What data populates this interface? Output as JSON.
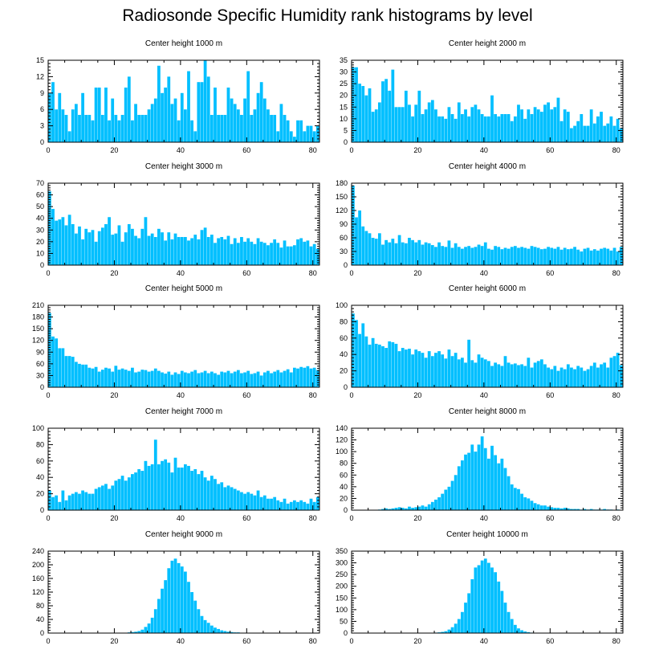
{
  "title": "Radiosonde Specific Humidity rank histograms by level",
  "colors": {
    "bar": "#00bfff",
    "axis": "#000000",
    "background": "#ffffff"
  },
  "chart_data": [
    {
      "type": "bar",
      "title": "Center height 1000 m",
      "xlim": [
        0,
        82
      ],
      "ylim": [
        0,
        15
      ],
      "x_ticks": [
        0,
        20,
        40,
        60,
        80
      ],
      "y_ticks": [
        0,
        3,
        6,
        9,
        12,
        15
      ],
      "values": [
        9,
        11,
        6,
        9,
        6,
        5,
        2,
        6,
        7,
        5,
        9,
        5,
        5,
        4,
        10,
        10,
        5,
        10,
        4,
        8,
        5,
        4,
        5,
        10,
        12,
        4,
        7,
        5,
        5,
        5,
        6,
        7,
        8,
        14,
        9,
        10,
        12,
        7,
        8,
        4,
        9,
        6,
        13,
        4,
        2,
        11,
        11,
        15,
        12,
        5,
        10,
        5,
        5,
        5,
        10,
        8,
        7,
        6,
        5,
        8,
        13,
        5,
        6,
        9,
        11,
        8,
        6,
        5,
        5,
        2,
        7,
        5,
        4,
        2,
        1,
        4,
        4,
        2,
        3,
        3,
        2,
        3
      ]
    },
    {
      "type": "bar",
      "title": "Center height 2000 m",
      "xlim": [
        0,
        82
      ],
      "ylim": [
        0,
        35
      ],
      "x_ticks": [
        0,
        20,
        40,
        60,
        80
      ],
      "y_ticks": [
        0,
        5,
        10,
        15,
        20,
        25,
        30,
        35
      ],
      "values": [
        32,
        32,
        25,
        24,
        20,
        23,
        13,
        14,
        17,
        26,
        27,
        22,
        31,
        15,
        15,
        15,
        22,
        16,
        11,
        16,
        22,
        12,
        14,
        17,
        18,
        14,
        11,
        11,
        10,
        15,
        12,
        10,
        17,
        12,
        14,
        11,
        15,
        16,
        14,
        12,
        11,
        11,
        20,
        12,
        11,
        12,
        12,
        12,
        9,
        11,
        16,
        14,
        10,
        14,
        12,
        15,
        14,
        13,
        16,
        17,
        14,
        15,
        19,
        9,
        14,
        13,
        6,
        7,
        9,
        12,
        7,
        7,
        14,
        8,
        11,
        13,
        7,
        8,
        11,
        7,
        10,
        6
      ]
    },
    {
      "type": "bar",
      "title": "Center height 3000 m",
      "xlim": [
        0,
        82
      ],
      "ylim": [
        0,
        70
      ],
      "x_ticks": [
        0,
        20,
        40,
        60,
        80
      ],
      "y_ticks": [
        0,
        10,
        20,
        30,
        40,
        50,
        60,
        70
      ],
      "values": [
        63,
        48,
        38,
        39,
        41,
        34,
        43,
        35,
        27,
        33,
        22,
        31,
        28,
        30,
        20,
        29,
        32,
        35,
        41,
        26,
        27,
        34,
        20,
        28,
        35,
        31,
        25,
        23,
        31,
        41,
        25,
        27,
        24,
        31,
        28,
        21,
        28,
        22,
        27,
        24,
        24,
        24,
        21,
        23,
        26,
        22,
        30,
        32,
        24,
        26,
        19,
        23,
        24,
        22,
        25,
        18,
        23,
        19,
        24,
        20,
        23,
        20,
        18,
        23,
        20,
        19,
        17,
        19,
        22,
        19,
        15,
        21,
        16,
        16,
        17,
        22,
        23,
        20,
        21,
        16,
        18,
        14
      ]
    },
    {
      "type": "bar",
      "title": "Center height 4000 m",
      "xlim": [
        0,
        82
      ],
      "ylim": [
        0,
        180
      ],
      "x_ticks": [
        0,
        20,
        40,
        60,
        80
      ],
      "y_ticks": [
        0,
        30,
        60,
        90,
        120,
        150,
        180
      ],
      "values": [
        175,
        105,
        120,
        85,
        75,
        70,
        60,
        58,
        70,
        45,
        55,
        50,
        58,
        48,
        66,
        50,
        48,
        60,
        55,
        50,
        55,
        45,
        50,
        48,
        44,
        40,
        50,
        42,
        40,
        54,
        38,
        48,
        40,
        36,
        40,
        42,
        38,
        40,
        45,
        42,
        50,
        36,
        34,
        42,
        40,
        35,
        38,
        36,
        40,
        42,
        38,
        40,
        38,
        36,
        42,
        40,
        38,
        35,
        36,
        40,
        38,
        36,
        40,
        34,
        38,
        35,
        36,
        40,
        34,
        30,
        36,
        38,
        32,
        35,
        32,
        36,
        38,
        36,
        32,
        38,
        30,
        40
      ]
    },
    {
      "type": "bar",
      "title": "Center height 5000 m",
      "xlim": [
        0,
        82
      ],
      "ylim": [
        0,
        210
      ],
      "x_ticks": [
        0,
        20,
        40,
        60,
        80
      ],
      "y_ticks": [
        0,
        30,
        60,
        90,
        120,
        150,
        180,
        210
      ],
      "values": [
        190,
        130,
        125,
        100,
        100,
        80,
        80,
        78,
        65,
        60,
        58,
        58,
        50,
        48,
        52,
        40,
        45,
        50,
        48,
        40,
        55,
        45,
        48,
        45,
        42,
        50,
        38,
        40,
        45,
        44,
        40,
        42,
        48,
        42,
        38,
        35,
        40,
        32,
        38,
        34,
        42,
        38,
        36,
        40,
        44,
        36,
        38,
        42,
        36,
        40,
        36,
        32,
        40,
        38,
        42,
        36,
        40,
        44,
        36,
        38,
        42,
        34,
        36,
        40,
        30,
        38,
        42,
        36,
        40,
        44,
        38,
        42,
        46,
        38,
        50,
        48,
        52,
        50,
        54,
        48,
        50,
        44
      ]
    },
    {
      "type": "bar",
      "title": "Center height 6000 m",
      "xlim": [
        0,
        82
      ],
      "ylim": [
        0,
        100
      ],
      "x_ticks": [
        0,
        20,
        40,
        60,
        80
      ],
      "y_ticks": [
        0,
        20,
        40,
        60,
        80,
        100
      ],
      "values": [
        90,
        82,
        65,
        78,
        62,
        52,
        60,
        53,
        52,
        50,
        48,
        56,
        55,
        53,
        44,
        48,
        46,
        47,
        40,
        46,
        44,
        42,
        36,
        44,
        38,
        42,
        44,
        40,
        35,
        46,
        38,
        42,
        34,
        36,
        30,
        58,
        33,
        30,
        40,
        36,
        34,
        32,
        26,
        30,
        28,
        26,
        38,
        30,
        28,
        29,
        27,
        28,
        26,
        36,
        24,
        30,
        32,
        34,
        28,
        24,
        22,
        26,
        20,
        24,
        22,
        28,
        24,
        22,
        26,
        24,
        20,
        22,
        26,
        30,
        24,
        28,
        30,
        24,
        36,
        38,
        42,
        27
      ]
    },
    {
      "type": "bar",
      "title": "Center height 7000 m",
      "xlim": [
        0,
        82
      ],
      "ylim": [
        0,
        100
      ],
      "x_ticks": [
        0,
        20,
        40,
        60,
        80
      ],
      "y_ticks": [
        0,
        20,
        40,
        60,
        80,
        100
      ],
      "values": [
        24,
        16,
        18,
        10,
        24,
        12,
        18,
        20,
        22,
        20,
        24,
        22,
        20,
        20,
        26,
        28,
        30,
        32,
        26,
        30,
        36,
        38,
        42,
        36,
        40,
        44,
        46,
        50,
        48,
        60,
        54,
        56,
        86,
        56,
        60,
        62,
        58,
        46,
        64,
        52,
        52,
        56,
        54,
        48,
        50,
        44,
        48,
        40,
        36,
        42,
        38,
        32,
        34,
        28,
        30,
        28,
        26,
        24,
        22,
        20,
        22,
        20,
        18,
        24,
        16,
        18,
        14,
        14,
        16,
        12,
        10,
        14,
        8,
        10,
        12,
        10,
        12,
        10,
        8,
        14,
        10,
        16
      ]
    },
    {
      "type": "bar",
      "title": "Center height 8000 m",
      "xlim": [
        0,
        82
      ],
      "ylim": [
        0,
        140
      ],
      "x_ticks": [
        0,
        20,
        40,
        60,
        80
      ],
      "y_ticks": [
        0,
        20,
        40,
        60,
        80,
        100,
        120,
        140
      ],
      "values": [
        0,
        0,
        0,
        0,
        0,
        0,
        0,
        0,
        1,
        2,
        3,
        2,
        3,
        4,
        5,
        4,
        3,
        6,
        4,
        5,
        6,
        8,
        6,
        10,
        14,
        18,
        22,
        28,
        35,
        40,
        50,
        60,
        75,
        85,
        95,
        98,
        112,
        100,
        112,
        126,
        106,
        88,
        110,
        94,
        80,
        88,
        72,
        58,
        44,
        38,
        36,
        28,
        22,
        20,
        16,
        12,
        10,
        8,
        8,
        6,
        5,
        4,
        4,
        3,
        4,
        3,
        2,
        2,
        2,
        1,
        2,
        1,
        2,
        1,
        1,
        1,
        2,
        1,
        1,
        0,
        1,
        0
      ]
    },
    {
      "type": "bar",
      "title": "Center height 9000 m",
      "xlim": [
        0,
        82
      ],
      "ylim": [
        0,
        240
      ],
      "x_ticks": [
        0,
        20,
        40,
        60,
        80
      ],
      "y_ticks": [
        0,
        40,
        80,
        120,
        160,
        200,
        240
      ],
      "values": [
        0,
        0,
        0,
        0,
        0,
        0,
        0,
        0,
        0,
        0,
        0,
        0,
        0,
        0,
        0,
        0,
        0,
        0,
        0,
        0,
        0,
        1,
        1,
        1,
        2,
        3,
        4,
        6,
        10,
        18,
        28,
        45,
        70,
        100,
        130,
        155,
        190,
        212,
        218,
        205,
        195,
        180,
        150,
        120,
        95,
        70,
        50,
        38,
        30,
        22,
        16,
        12,
        8,
        6,
        4,
        3,
        2,
        2,
        1,
        1,
        1,
        0,
        0,
        0,
        0,
        0,
        0,
        0,
        0,
        0,
        0,
        0,
        0,
        0,
        0,
        0,
        0,
        0,
        0,
        0,
        0,
        0
      ]
    },
    {
      "type": "bar",
      "title": "Center height 10000 m",
      "xlim": [
        0,
        82
      ],
      "ylim": [
        0,
        350
      ],
      "x_ticks": [
        0,
        20,
        40,
        60,
        80
      ],
      "y_ticks": [
        0,
        50,
        100,
        150,
        200,
        250,
        300,
        350
      ],
      "values": [
        0,
        0,
        0,
        0,
        0,
        0,
        0,
        0,
        0,
        0,
        0,
        0,
        0,
        0,
        0,
        0,
        0,
        0,
        0,
        0,
        0,
        0,
        0,
        0,
        1,
        2,
        3,
        5,
        8,
        15,
        25,
        40,
        60,
        90,
        130,
        170,
        230,
        280,
        290,
        310,
        318,
        300,
        280,
        260,
        220,
        180,
        130,
        90,
        60,
        35,
        20,
        12,
        7,
        4,
        2,
        1,
        1,
        1,
        0,
        0,
        0,
        0,
        0,
        0,
        0,
        0,
        0,
        0,
        0,
        0,
        0,
        0,
        0,
        0,
        0,
        0,
        0,
        0,
        0,
        0,
        0,
        0
      ]
    }
  ]
}
